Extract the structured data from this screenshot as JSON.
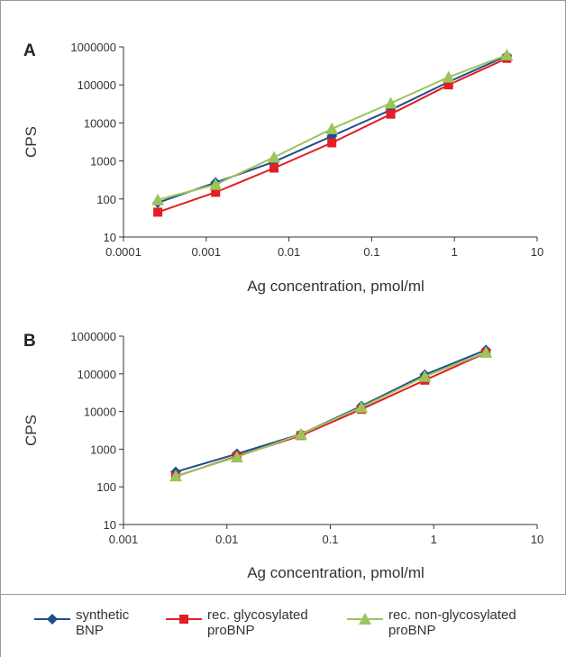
{
  "panels": [
    {
      "letter": "A"
    },
    {
      "letter": "B"
    }
  ],
  "legend": [
    {
      "line1": "synthetic",
      "line2": "BNP",
      "color": "#1f4e8c",
      "marker": "diamond"
    },
    {
      "line1": "rec. glycosylated",
      "line2": "proBNP",
      "color": "#e31e24",
      "marker": "square"
    },
    {
      "line1": "rec. non-glycosylated",
      "line2": "proBNP",
      "color": "#9bc45a",
      "marker": "triangle"
    }
  ],
  "colors": {
    "frame": "#9a9a9a",
    "axis": "#333333",
    "text": "#333333"
  },
  "chart_data": [
    {
      "type": "line",
      "panel": "A",
      "xlabel": "Ag concentration, pmol/ml",
      "ylabel": "CPS",
      "xscale": "log",
      "yscale": "log",
      "xlim": [
        0.0001,
        10
      ],
      "ylim": [
        10,
        1000000
      ],
      "xticks": [
        "0.0001",
        "0.001",
        "0.01",
        "0.1",
        "1",
        "10"
      ],
      "yticks": [
        "10",
        "100",
        "1000",
        "10000",
        "100000",
        "1000000"
      ],
      "grid": false,
      "x": [
        0.00026,
        0.0013,
        0.0066,
        0.033,
        0.17,
        0.85,
        4.3
      ],
      "series": [
        {
          "name": "synthetic BNP",
          "color": "#1f4e8c",
          "marker": "diamond",
          "values": [
            80,
            270,
            950,
            4500,
            22000,
            120000,
            580000
          ]
        },
        {
          "name": "rec. glycosylated proBNP",
          "color": "#e31e24",
          "marker": "square",
          "values": [
            45,
            150,
            650,
            3000,
            17000,
            100000,
            500000
          ]
        },
        {
          "name": "rec. non-glycosylated proBNP",
          "color": "#9bc45a",
          "marker": "triangle",
          "values": [
            95,
            240,
            1250,
            7000,
            33000,
            160000,
            610000
          ]
        }
      ]
    },
    {
      "type": "line",
      "panel": "B",
      "xlabel": "Ag concentration, pmol/ml",
      "ylabel": "CPS",
      "xscale": "log",
      "yscale": "log",
      "xlim": [
        0.001,
        10
      ],
      "ylim": [
        10,
        1000000
      ],
      "xticks": [
        "0.001",
        "0.01",
        "0.1",
        "1",
        "10"
      ],
      "yticks": [
        "10",
        "100",
        "1000",
        "10000",
        "100000",
        "1000000"
      ],
      "grid": false,
      "x": [
        0.0032,
        0.0125,
        0.052,
        0.2,
        0.82,
        3.2
      ],
      "series": [
        {
          "name": "synthetic BNP",
          "color": "#1f4e8c",
          "marker": "diamond",
          "values": [
            250,
            750,
            2500,
            14000,
            95000,
            430000
          ]
        },
        {
          "name": "rec. glycosylated proBNP",
          "color": "#e31e24",
          "marker": "square",
          "values": [
            190,
            650,
            2300,
            11500,
            68000,
            360000
          ]
        },
        {
          "name": "rec. non-glycosylated proBNP",
          "color": "#9bc45a",
          "marker": "triangle",
          "values": [
            195,
            620,
            2500,
            13000,
            85000,
            370000
          ]
        }
      ]
    }
  ]
}
